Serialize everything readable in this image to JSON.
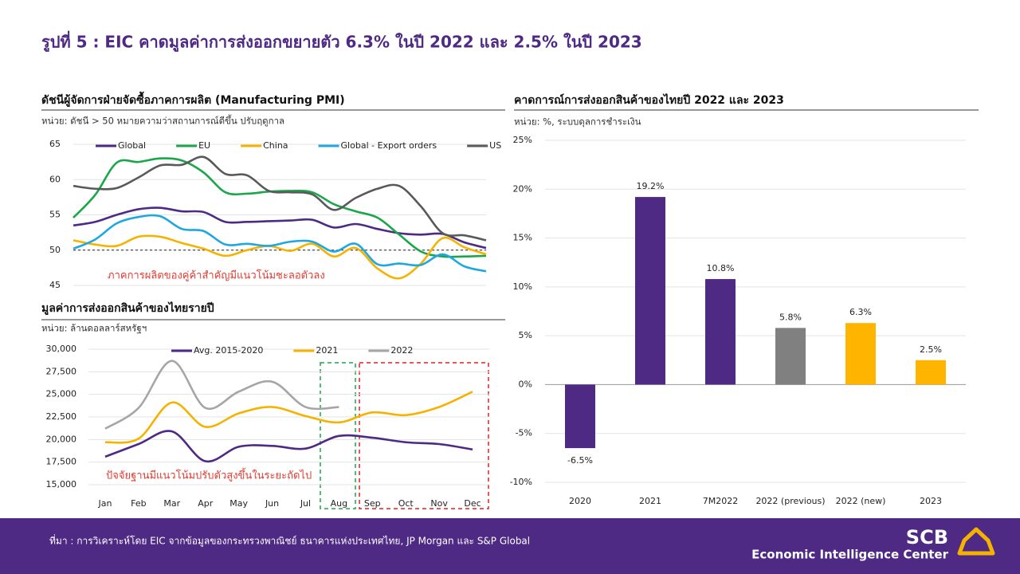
{
  "title": "รูปที่ 5 : EIC คาดมูลค่าการส่งออกขยายตัว 6.3% ในปี 2022 และ 2.5% ในปี 2023",
  "source": "ที่มา : การวิเคราะห์โดย EIC จากข้อมูลของกระทรวงพาณิชย์ ธนาคารแห่งประเทศไทย, JP Morgan และ S&P Global",
  "logo": {
    "name": "SCB",
    "subtitle": "Economic Intelligence Center"
  },
  "chart_data": [
    {
      "type": "line",
      "title": "ดัชนีผู้จัดการฝ่ายจัดซื้อภาคการผลิต (Manufacturing PMI)",
      "subtitle": "หน่วย: ดัชนี > 50 หมายความว่าสถานการณ์ดีขึ้น ปรับฤดูกาล",
      "annotation": "ภาคการผลิตของคู่ค้าสำคัญมีแนวโน้มชะลอตัวลง",
      "categories": [
        null,
        null,
        null,
        null,
        null,
        null,
        null,
        null,
        null,
        null,
        null,
        null,
        null,
        null,
        null,
        null,
        null,
        null,
        null,
        null
      ],
      "series": [
        {
          "name": "Global",
          "color": "#4e2a84",
          "values": [
            53.5,
            54,
            55,
            55.8,
            56,
            55.5,
            55.4,
            54,
            54,
            54.1,
            54.2,
            54.3,
            53.2,
            53.7,
            53,
            52.4,
            52.2,
            52.3,
            51.1,
            50.3
          ]
        },
        {
          "name": "EU",
          "color": "#1aa64a",
          "values": [
            54.6,
            57.8,
            62.4,
            62.5,
            63,
            62.7,
            61,
            58.2,
            58,
            58.3,
            58.4,
            58.2,
            56.5,
            55.5,
            54.6,
            52.2,
            49.8,
            49.1,
            49.1,
            49.2
          ]
        },
        {
          "name": "China",
          "color": "#f5b300",
          "values": [
            51.4,
            50.8,
            50.6,
            51.9,
            51.9,
            51,
            50.2,
            49.2,
            50,
            50.6,
            49.9,
            50.9,
            49.1,
            50.3,
            47.4,
            46,
            48.1,
            51.7,
            50.4,
            49.4
          ]
        },
        {
          "name": "Global - Export orders",
          "color": "#1ea7e1",
          "values": [
            50.2,
            51.5,
            53.8,
            54.7,
            54.8,
            53,
            52.7,
            50.8,
            50.9,
            50.6,
            51.2,
            51.2,
            49.8,
            50.9,
            48,
            48.1,
            47.9,
            49.4,
            47.7,
            47
          ]
        },
        {
          "name": "US",
          "color": "#595959",
          "values": [
            59.1,
            58.7,
            58.8,
            60.3,
            62,
            62.1,
            63.2,
            60.8,
            60.6,
            58.4,
            58.2,
            57.9,
            55.7,
            57.4,
            58.7,
            59.1,
            56.2,
            52.4,
            52.1,
            51.4
          ]
        }
      ],
      "ylim": [
        45,
        65
      ],
      "yticks": [
        45,
        50,
        55,
        60,
        65
      ],
      "reference_line": 50,
      "grid": true
    },
    {
      "type": "line",
      "title": "มูลค่าการส่งออกสินค้าของไทยรายปี",
      "subtitle": "หน่วย: ล้านดอลลาร์สหรัฐฯ",
      "annotation": "ปัจจัยฐานมีแนวโน้มปรับตัวสูงขึ้นในระยะถัดไป",
      "categories": [
        "Jan",
        "Feb",
        "Mar",
        "Apr",
        "May",
        "Jun",
        "Jul",
        "Aug",
        "Sep",
        "Oct",
        "Nov",
        "Dec"
      ],
      "series": [
        {
          "name": "Avg. 2015-2020",
          "color": "#4e2a84",
          "values": [
            18100,
            19500,
            20900,
            17600,
            19200,
            19300,
            19000,
            20400,
            20200,
            19700,
            19500,
            18900
          ]
        },
        {
          "name": "2021",
          "color": "#f5b300",
          "values": [
            19700,
            20100,
            24100,
            21400,
            22900,
            23600,
            22600,
            21900,
            23000,
            22700,
            23600,
            25300
          ]
        },
        {
          "name": "2022",
          "color": "#a6a6a6",
          "values": [
            21200,
            23500,
            28700,
            23500,
            25300,
            26400,
            23600,
            23600,
            null,
            null,
            null,
            null
          ]
        }
      ],
      "ylim": [
        15000,
        30000
      ],
      "yticks": [
        {
          "value": 15000,
          "label": "15,000"
        },
        {
          "value": 17500,
          "label": "17,500"
        },
        {
          "value": 20000,
          "label": "20,000"
        },
        {
          "value": 22500,
          "label": "22,500"
        },
        {
          "value": 25000,
          "label": "25,000"
        },
        {
          "value": 27500,
          "label": "27,500"
        },
        {
          "value": 30000,
          "label": "30,000"
        }
      ],
      "grid": true
    },
    {
      "type": "bar",
      "title": "คาดการณ์การส่งออกสินค้าของไทยปี 2022 และ 2023",
      "subtitle": "หน่วย: %, ระบบดุลการชำระเงิน",
      "categories": [
        "2020",
        "2021",
        "7M2022",
        "2022 (previous)",
        "2022 (new)",
        "2023"
      ],
      "values": [
        -6.5,
        19.2,
        10.8,
        5.8,
        6.3,
        2.5
      ],
      "value_labels": [
        "-6.5%",
        "19.2%",
        "10.8%",
        "5.8%",
        "6.3%",
        "2.5%"
      ],
      "colors": [
        "#4e2a84",
        "#4e2a84",
        "#4e2a84",
        "#808080",
        "#ffb400",
        "#ffb400"
      ],
      "ylim": [
        -10,
        25
      ],
      "yticks": [
        {
          "value": -10,
          "label": "-10%"
        },
        {
          "value": -5,
          "label": "-5%"
        },
        {
          "value": 0,
          "label": "0%"
        },
        {
          "value": 5,
          "label": "5%"
        },
        {
          "value": 10,
          "label": "10%"
        },
        {
          "value": 15,
          "label": "15%"
        },
        {
          "value": 20,
          "label": "20%"
        },
        {
          "value": 25,
          "label": "25%"
        }
      ],
      "grid": true
    }
  ]
}
